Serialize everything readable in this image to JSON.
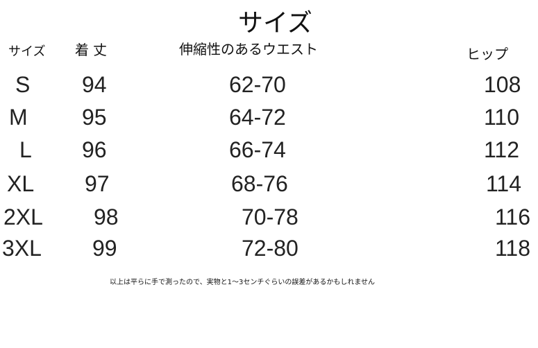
{
  "title": "サイズ",
  "headers": {
    "size": "サイズ",
    "length": "着丈",
    "waist": "伸縮性のあるウエスト",
    "hip": "ヒップ"
  },
  "rows": [
    {
      "size": "S",
      "length": "94",
      "waist": "62-70",
      "hip": "108"
    },
    {
      "size": "M",
      "length": "95",
      "waist": "64-72",
      "hip": "110"
    },
    {
      "size": "L",
      "length": "96",
      "waist": "66-74",
      "hip": "112"
    },
    {
      "size": "XL",
      "length": "97",
      "waist": "68-76",
      "hip": "114"
    },
    {
      "size": "2XL",
      "length": "98",
      "waist": "70-78",
      "hip": "116"
    },
    {
      "size": "3XL",
      "length": "99",
      "waist": "72-80",
      "hip": "118"
    }
  ],
  "note": "以上は平らに手で測ったので、実物と1～3センチぐらいの誤差があるかもしれません"
}
